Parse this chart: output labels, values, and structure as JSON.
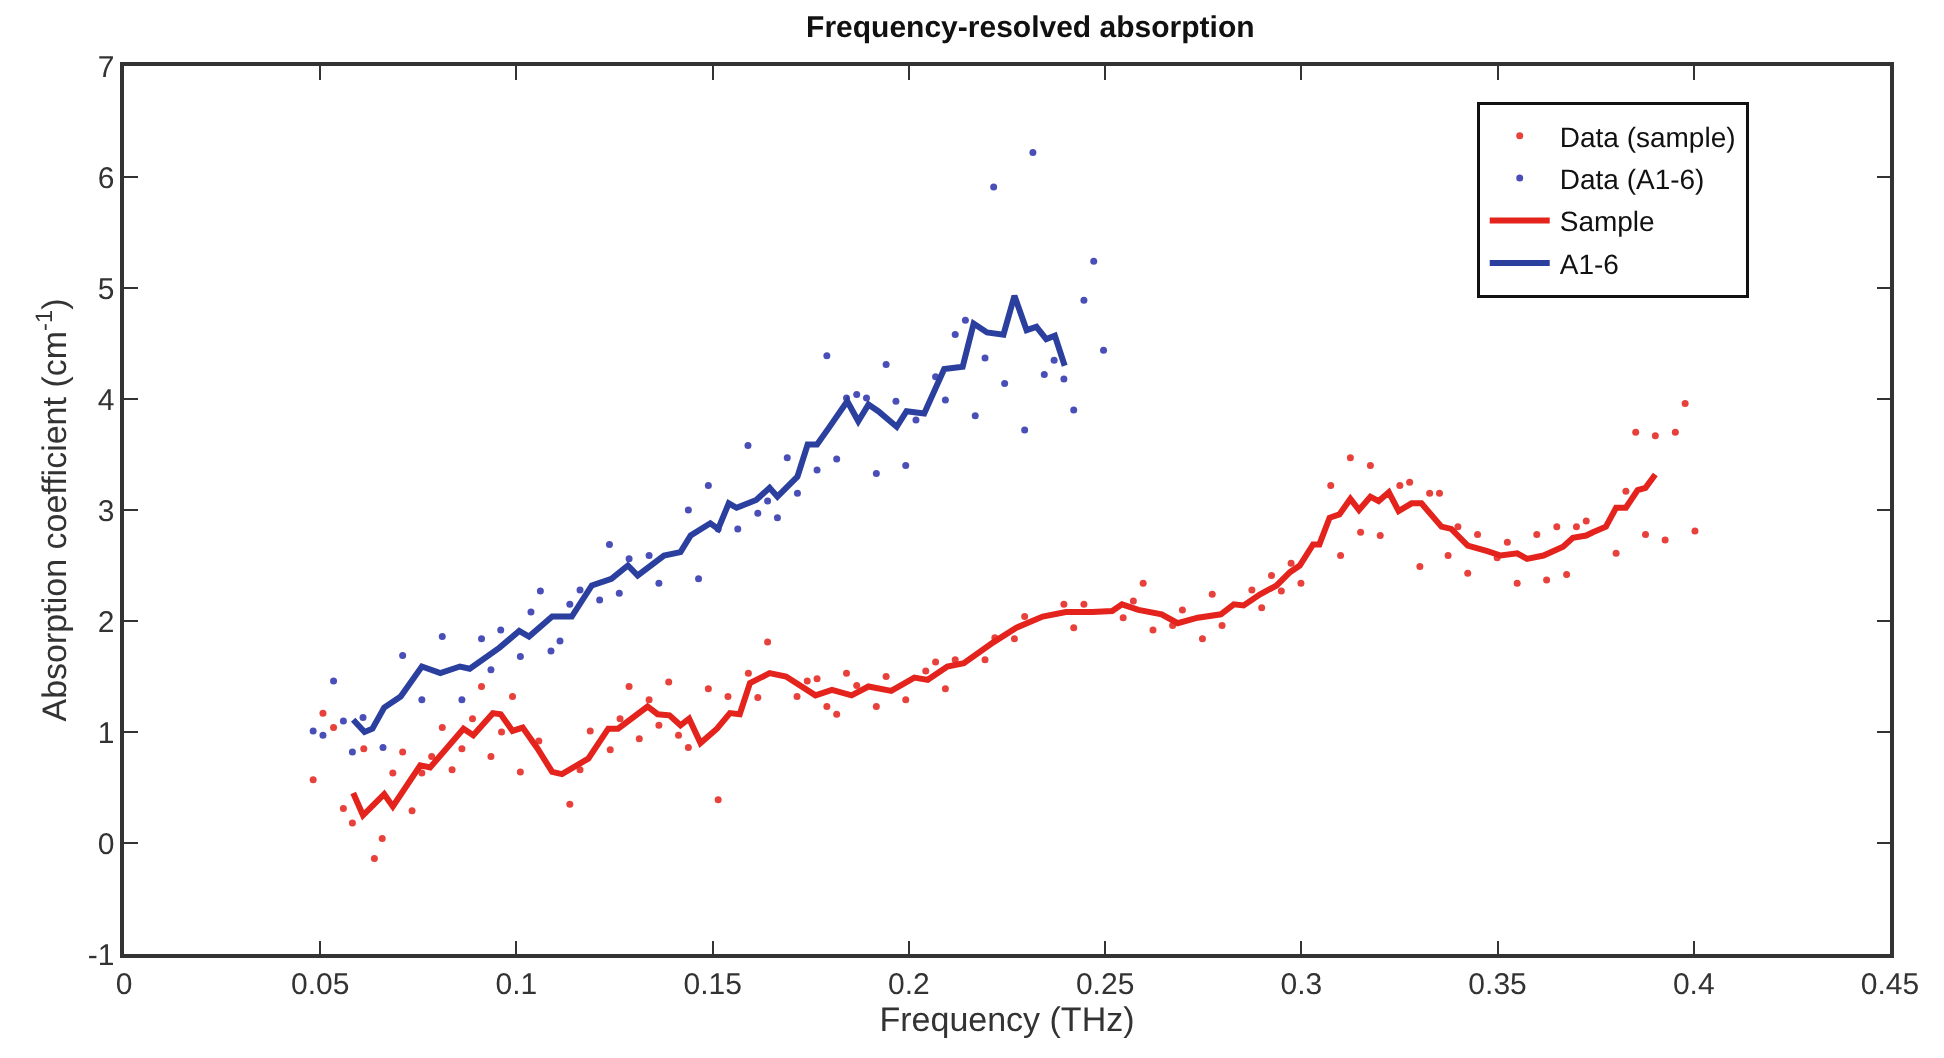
{
  "chart_data": {
    "type": "line",
    "title": "Frequency-resolved absorption",
    "xlabel": "Frequency (THz)",
    "ylabel": "Absorption coefficient (cm$^{-1}$)",
    "xlim": [
      0,
      0.45
    ],
    "xticks": [
      0,
      0.05,
      0.1,
      0.15,
      0.2,
      0.25,
      0.3,
      0.35,
      0.4,
      0.45
    ],
    "ylim": [
      -1,
      7
    ],
    "yticks": [
      -1,
      0,
      1,
      2,
      3,
      4,
      5,
      6,
      7
    ],
    "legend": "top right",
    "series": [
      {
        "name": "Data (sample)",
        "type": "scatter",
        "marker": "circle",
        "color": "#e8413c",
        "x": [
          0.0482,
          0.0507,
          0.0534,
          0.0559,
          0.0582,
          0.0611,
          0.0638,
          0.0658,
          0.0685,
          0.071,
          0.0734,
          0.0759,
          0.0784,
          0.0811,
          0.0836,
          0.0861,
          0.0888,
          0.0911,
          0.0935,
          0.0962,
          0.099,
          0.101,
          0.1057,
          0.1136,
          0.1162,
          0.1188,
          0.1239,
          0.1264,
          0.1287,
          0.1313,
          0.1338,
          0.1363,
          0.1388,
          0.1413,
          0.1438,
          0.1489,
          0.1514,
          0.1539,
          0.1591,
          0.1615,
          0.164,
          0.1715,
          0.1741,
          0.1766,
          0.1791,
          0.1816,
          0.1841,
          0.1867,
          0.1917,
          0.1942,
          0.1992,
          0.2043,
          0.2068,
          0.2093,
          0.2118,
          0.2194,
          0.2219,
          0.2269,
          0.2295,
          0.2395,
          0.242,
          0.2446,
          0.2546,
          0.2572,
          0.2597,
          0.2622,
          0.2672,
          0.2697,
          0.2748,
          0.2773,
          0.2798,
          0.2874,
          0.2899,
          0.2924,
          0.2949,
          0.2974,
          0.2999,
          0.3075,
          0.31,
          0.3125,
          0.3151,
          0.3176,
          0.3201,
          0.3251,
          0.3276,
          0.3302,
          0.3327,
          0.3352,
          0.3374,
          0.3399,
          0.3424,
          0.3449,
          0.3499,
          0.3525,
          0.355,
          0.36,
          0.3625,
          0.3651,
          0.3676,
          0.3701,
          0.3726,
          0.3802,
          0.3827,
          0.3852,
          0.3877,
          0.3902,
          0.3927,
          0.3953,
          0.3978,
          0.4003
        ],
        "values": [
          0.57,
          1.17,
          1.04,
          0.31,
          0.18,
          0.85,
          -0.14,
          0.04,
          0.63,
          0.82,
          0.29,
          0.63,
          0.78,
          1.04,
          0.66,
          0.85,
          1.12,
          1.41,
          0.78,
          1.0,
          1.32,
          0.64,
          0.92,
          0.35,
          0.66,
          1.01,
          0.84,
          1.12,
          1.41,
          0.94,
          1.29,
          1.06,
          1.45,
          0.97,
          0.86,
          1.39,
          0.39,
          1.32,
          1.53,
          1.31,
          1.81,
          1.32,
          1.46,
          1.48,
          1.23,
          1.16,
          1.53,
          1.42,
          1.23,
          1.5,
          1.29,
          1.55,
          1.63,
          1.39,
          1.65,
          1.65,
          1.85,
          1.84,
          2.04,
          2.15,
          1.94,
          2.15,
          2.03,
          2.18,
          2.34,
          1.92,
          1.96,
          2.1,
          1.84,
          2.24,
          1.96,
          2.28,
          2.12,
          2.41,
          2.27,
          2.52,
          2.34,
          3.22,
          2.59,
          3.47,
          2.8,
          3.4,
          2.77,
          3.22,
          3.25,
          2.49,
          3.15,
          3.15,
          2.59,
          2.85,
          2.43,
          2.78,
          2.57,
          2.71,
          2.34,
          2.78,
          2.37,
          2.85,
          2.42,
          2.85,
          2.9,
          2.61,
          3.17,
          3.7,
          2.78,
          3.67,
          2.73,
          3.7,
          3.96,
          2.81
        ]
      },
      {
        "name": "Data (A1-6)",
        "type": "scatter",
        "marker": "circle",
        "color": "#4a4fb8",
        "x": [
          0.0482,
          0.0507,
          0.0534,
          0.0559,
          0.0582,
          0.0609,
          0.066,
          0.071,
          0.0759,
          0.0811,
          0.0861,
          0.0911,
          0.0935,
          0.096,
          0.101,
          0.1037,
          0.1061,
          0.1088,
          0.1111,
          0.1136,
          0.1162,
          0.1212,
          0.1237,
          0.1262,
          0.1287,
          0.1338,
          0.1363,
          0.1438,
          0.1464,
          0.1489,
          0.1514,
          0.1564,
          0.159,
          0.1615,
          0.164,
          0.1665,
          0.169,
          0.1716,
          0.1766,
          0.1791,
          0.1816,
          0.1841,
          0.1867,
          0.1892,
          0.1917,
          0.1942,
          0.1967,
          0.1992,
          0.2018,
          0.2068,
          0.2093,
          0.2118,
          0.2144,
          0.2169,
          0.2194,
          0.2216,
          0.2244,
          0.2295,
          0.2316,
          0.2345,
          0.237,
          0.2395,
          0.242,
          0.2446,
          0.2471,
          0.2496
        ],
        "values": [
          1.01,
          0.97,
          1.46,
          1.1,
          0.82,
          1.13,
          0.86,
          1.69,
          1.29,
          1.86,
          1.29,
          1.84,
          1.56,
          1.92,
          1.68,
          2.08,
          2.27,
          1.73,
          1.82,
          2.15,
          2.28,
          2.19,
          2.69,
          2.25,
          2.56,
          2.59,
          2.34,
          3.0,
          2.38,
          3.22,
          2.83,
          2.83,
          3.58,
          2.97,
          3.08,
          2.93,
          3.47,
          3.15,
          3.36,
          4.39,
          3.46,
          4.01,
          4.04,
          4.01,
          3.33,
          4.31,
          3.98,
          3.4,
          3.81,
          4.2,
          3.99,
          4.58,
          4.71,
          3.85,
          4.37,
          5.91,
          4.14,
          3.72,
          6.22,
          4.22,
          4.35,
          4.18,
          3.9,
          4.89,
          5.24,
          4.44
        ]
      },
      {
        "name": "Sample",
        "color": "#e3231c",
        "x": [
          0.0584,
          0.0609,
          0.0663,
          0.0685,
          0.0755,
          0.078,
          0.0865,
          0.089,
          0.094,
          0.096,
          0.099,
          0.1016,
          0.1054,
          0.1091,
          0.1116,
          0.1183,
          0.1234,
          0.1259,
          0.1334,
          0.136,
          0.139,
          0.1418,
          0.144,
          0.1469,
          0.1511,
          0.1544,
          0.1569,
          0.1595,
          0.1645,
          0.1687,
          0.1762,
          0.1804,
          0.1854,
          0.1897,
          0.1955,
          0.2014,
          0.2048,
          0.2098,
          0.214,
          0.2216,
          0.2274,
          0.2341,
          0.24,
          0.2467,
          0.2518,
          0.2543,
          0.2585,
          0.2644,
          0.2685,
          0.2736,
          0.2795,
          0.2828,
          0.2853,
          0.2895,
          0.2937,
          0.2971,
          0.2996,
          0.303,
          0.3046,
          0.3072,
          0.3097,
          0.3125,
          0.3147,
          0.3176,
          0.3197,
          0.3223,
          0.3248,
          0.3281,
          0.3306,
          0.3357,
          0.3382,
          0.3424,
          0.3474,
          0.3508,
          0.355,
          0.3575,
          0.3617,
          0.3667,
          0.3692,
          0.3726,
          0.3743,
          0.3776,
          0.3802,
          0.3827,
          0.3857,
          0.3877,
          0.3902
        ],
        "values": [
          0.45,
          0.25,
          0.44,
          0.33,
          0.7,
          0.68,
          1.03,
          0.97,
          1.17,
          1.16,
          1.01,
          1.04,
          0.85,
          0.64,
          0.62,
          0.76,
          1.03,
          1.03,
          1.23,
          1.16,
          1.15,
          1.06,
          1.12,
          0.9,
          1.03,
          1.17,
          1.16,
          1.44,
          1.53,
          1.5,
          1.33,
          1.38,
          1.33,
          1.41,
          1.37,
          1.49,
          1.47,
          1.59,
          1.62,
          1.81,
          1.94,
          2.04,
          2.08,
          2.08,
          2.09,
          2.15,
          2.1,
          2.06,
          1.98,
          2.03,
          2.06,
          2.15,
          2.14,
          2.24,
          2.32,
          2.44,
          2.5,
          2.69,
          2.69,
          2.93,
          2.96,
          3.1,
          3.0,
          3.12,
          3.08,
          3.16,
          2.99,
          3.06,
          3.06,
          2.85,
          2.83,
          2.68,
          2.63,
          2.59,
          2.61,
          2.56,
          2.59,
          2.67,
          2.75,
          2.77,
          2.8,
          2.85,
          3.02,
          3.02,
          3.18,
          3.2,
          3.32
        ]
      },
      {
        "name": "A1-6",
        "color": "#2b3f9e",
        "x": [
          0.0584,
          0.0613,
          0.0633,
          0.0663,
          0.0705,
          0.0759,
          0.0806,
          0.0856,
          0.0881,
          0.0957,
          0.1007,
          0.1032,
          0.1091,
          0.1141,
          0.1192,
          0.1242,
          0.1284,
          0.1309,
          0.1376,
          0.1418,
          0.1444,
          0.1494,
          0.1514,
          0.1541,
          0.1561,
          0.1611,
          0.1645,
          0.1665,
          0.1716,
          0.1742,
          0.1766,
          0.1796,
          0.1843,
          0.1871,
          0.1897,
          0.1922,
          0.1969,
          0.1994,
          0.2039,
          0.209,
          0.2137,
          0.2165,
          0.2199,
          0.2241,
          0.2269,
          0.23,
          0.2325,
          0.235,
          0.2372,
          0.2397
        ],
        "values": [
          1.11,
          1.0,
          1.03,
          1.22,
          1.32,
          1.59,
          1.53,
          1.59,
          1.57,
          1.76,
          1.91,
          1.86,
          2.04,
          2.04,
          2.32,
          2.38,
          2.5,
          2.41,
          2.59,
          2.62,
          2.77,
          2.88,
          2.83,
          3.06,
          3.02,
          3.09,
          3.2,
          3.12,
          3.3,
          3.59,
          3.59,
          3.74,
          3.98,
          3.8,
          3.95,
          3.89,
          3.75,
          3.89,
          3.87,
          4.27,
          4.29,
          4.68,
          4.6,
          4.58,
          4.93,
          4.62,
          4.65,
          4.54,
          4.57,
          4.3
        ]
      }
    ]
  }
}
